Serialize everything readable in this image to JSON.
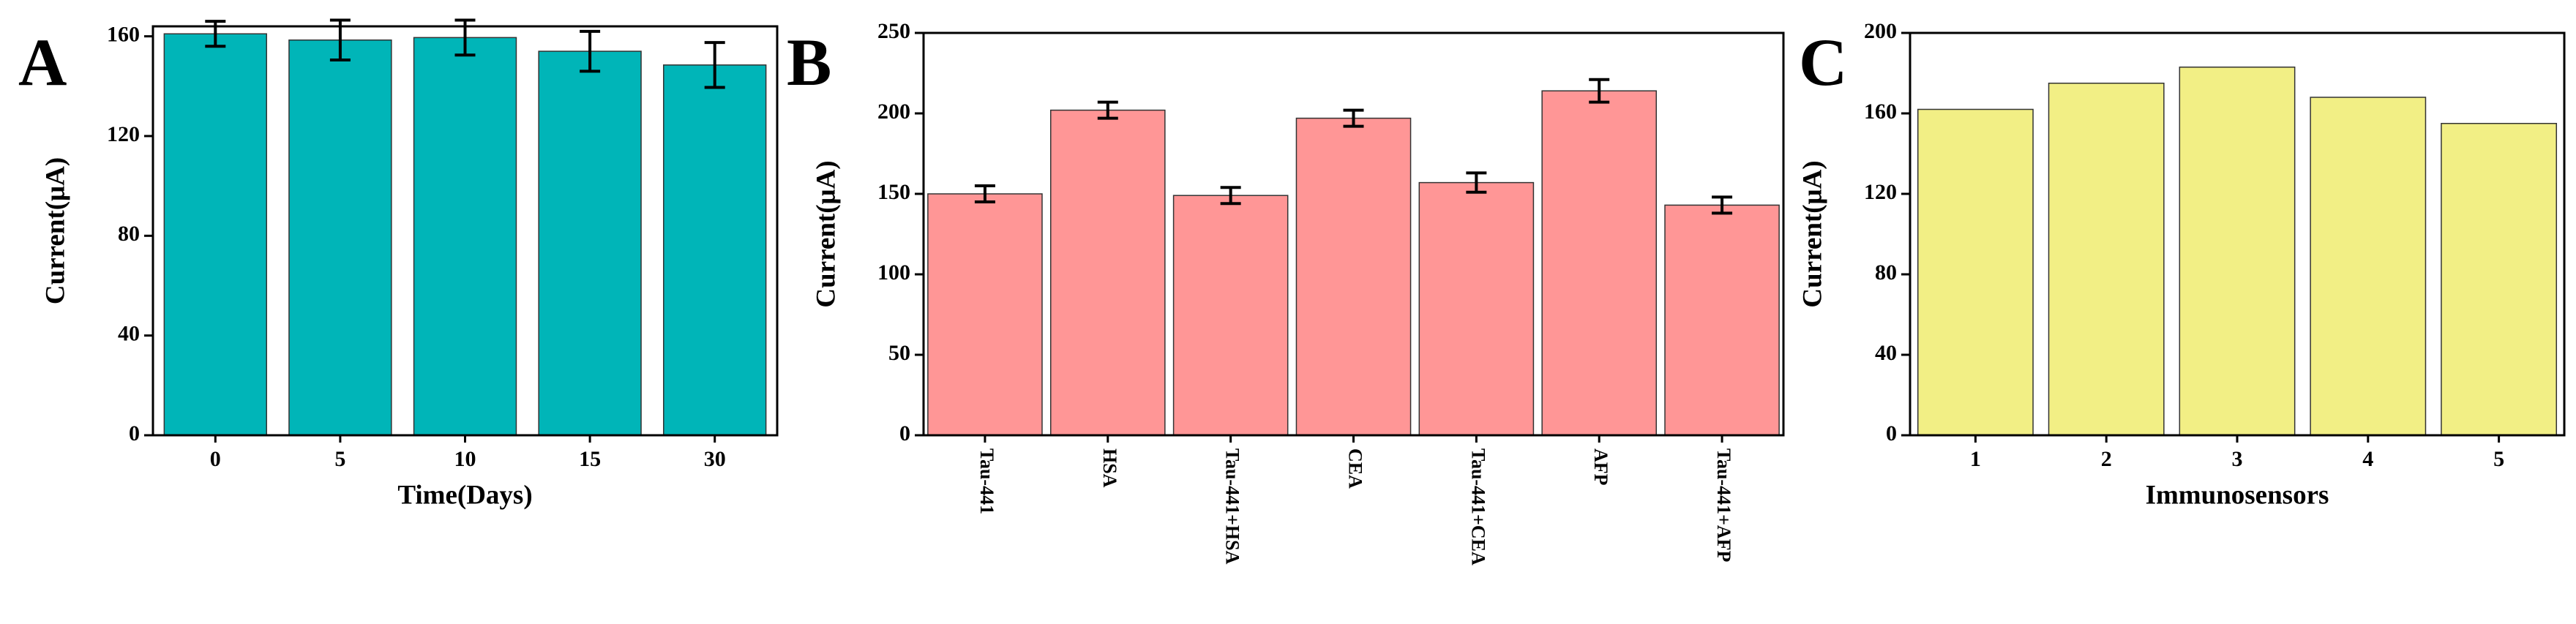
{
  "chart_data": [
    {
      "type": "bar",
      "label": "A",
      "xlabel": "Time(Days)",
      "ylabel": "Current(μA)",
      "categories": [
        "0",
        "5",
        "10",
        "15",
        "30"
      ],
      "values": [
        161,
        158.5,
        159.5,
        154,
        148.5
      ],
      "errors": [
        5,
        8,
        7,
        8,
        9
      ],
      "color": "#00b5b8",
      "ylim": [
        0,
        164
      ],
      "yticks": [
        0,
        40,
        80,
        120,
        160
      ]
    },
    {
      "type": "bar",
      "label": "B",
      "ylabel": "Current(μA)",
      "categories": [
        "Tau-441",
        "HSA",
        "Tau-441+HSA",
        "CEA",
        "Tau-441+CEA",
        "AFP",
        "Tau-441+AFP"
      ],
      "values": [
        150,
        202,
        149,
        197,
        157,
        214,
        143
      ],
      "errors": [
        5,
        5,
        5,
        5,
        6,
        7,
        5
      ],
      "color": "#ff9696",
      "ylim": [
        0,
        250
      ],
      "yticks": [
        0,
        50,
        100,
        150,
        200,
        250
      ]
    },
    {
      "type": "bar",
      "label": "C",
      "xlabel": "Immunosensors",
      "ylabel": "Current(μA)",
      "categories": [
        "1",
        "2",
        "3",
        "4",
        "5"
      ],
      "values": [
        162,
        175,
        183,
        168,
        155
      ],
      "color": "#f2ef85",
      "ylim": [
        0,
        200
      ],
      "yticks": [
        0,
        40,
        80,
        120,
        160,
        200
      ]
    }
  ]
}
